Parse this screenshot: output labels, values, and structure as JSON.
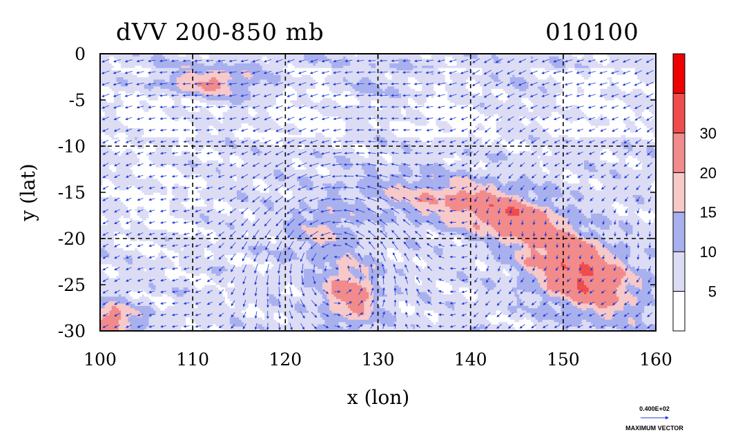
{
  "chart_data": {
    "type": "heatmap",
    "title": "dVV 200-850 mb",
    "timestamp": "010100",
    "xlabel": "x (lon)",
    "ylabel": "y (lat)",
    "xlim": [
      100,
      160
    ],
    "ylim": [
      -30,
      0
    ],
    "x_ticks": [
      "100",
      "110",
      "120",
      "130",
      "140",
      "150",
      "160"
    ],
    "y_ticks": [
      "0",
      "-5",
      "-10",
      "-15",
      "-20",
      "-25",
      "-30"
    ],
    "grid": true,
    "colorbar": {
      "levels": [
        0,
        5,
        10,
        15,
        20,
        30,
        40
      ],
      "labels": [
        "5",
        "10",
        "15",
        "20",
        "30"
      ],
      "colors": [
        "#ffffff",
        "#dcdcf5",
        "#a9b0ee",
        "#f7c9c9",
        "#f28b8b",
        "#ef4d4d",
        "#ee0000"
      ]
    },
    "field_regions": [
      {
        "center": [
          152,
          -24
        ],
        "spread": [
          6,
          3.5
        ],
        "tilt": -0.45,
        "amplitude": 24
      },
      {
        "center": [
          145,
          -18
        ],
        "spread": [
          6,
          2.6
        ],
        "tilt": -0.35,
        "amplitude": 14
      },
      {
        "center": [
          138,
          -16
        ],
        "spread": [
          9,
          2.5
        ],
        "tilt": -0.15,
        "amplitude": 12
      },
      {
        "center": [
          127,
          -26
        ],
        "spread": [
          3,
          3.5
        ],
        "tilt": 0.2,
        "amplitude": 17
      },
      {
        "center": [
          124,
          -19
        ],
        "spread": [
          4,
          3
        ],
        "tilt": 0.3,
        "amplitude": 8
      },
      {
        "center": [
          111,
          -3
        ],
        "spread": [
          6,
          1.6
        ],
        "tilt": 0,
        "amplitude": 14
      },
      {
        "center": [
          101,
          -29
        ],
        "spread": [
          3,
          2
        ],
        "tilt": 0,
        "amplitude": 18
      },
      {
        "center": [
          132,
          -3
        ],
        "spread": [
          20,
          2.5
        ],
        "tilt": 0,
        "amplitude": 3
      },
      {
        "center": [
          106,
          -16
        ],
        "spread": [
          5,
          6
        ],
        "tilt": 0,
        "amplitude": -3
      }
    ],
    "background_level": 7,
    "wind_vectors": {
      "description": "blue arrows, westward near equator, cyclonic swirl near 125E 22S",
      "max_vector": "0.400E+02",
      "max_vector_label": "MAXIMUM VECTOR",
      "color": "#1f3bd6"
    }
  }
}
